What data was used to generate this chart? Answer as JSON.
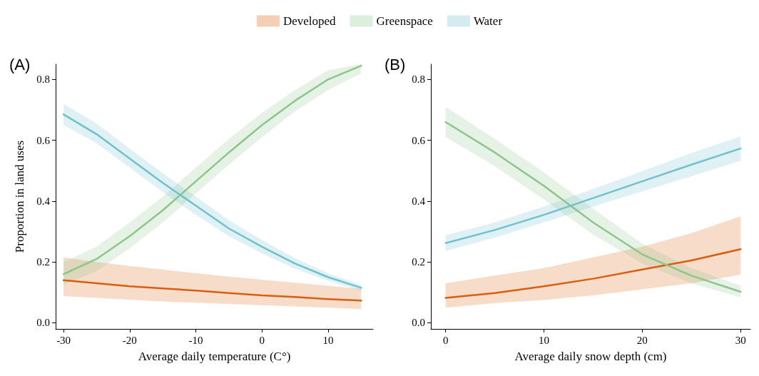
{
  "chart_data": [
    {
      "type": "line",
      "title": "(A)",
      "xlabel": "Average daily temperature (C°)",
      "ylabel": "Proportion in land uses",
      "x": [
        -30,
        -25,
        -20,
        -15,
        -10,
        -5,
        0,
        5,
        10,
        15
      ],
      "xlim": [
        -31.2,
        16.8
      ],
      "xticks": [
        -30,
        -20,
        -10,
        0,
        10
      ],
      "ylim": [
        -0.02,
        0.85
      ],
      "yticks": [
        {
          "value": 0,
          "label": "0.0"
        },
        0.2,
        0.4,
        0.6,
        0.8
      ],
      "grid": false,
      "legend": "top",
      "marker": "none",
      "line_style": "solid",
      "series": [
        {
          "name": "Developed",
          "color": "#d95f0e",
          "values": [
            0.14,
            0.13,
            0.12,
            0.113,
            0.106,
            0.098,
            0.09,
            0.085,
            0.078,
            0.073
          ],
          "lower": [
            0.088,
            0.082,
            0.076,
            0.07,
            0.066,
            0.062,
            0.058,
            0.054,
            0.05,
            0.045
          ],
          "upper": [
            0.215,
            0.2,
            0.187,
            0.175,
            0.163,
            0.152,
            0.142,
            0.132,
            0.122,
            0.112
          ]
        },
        {
          "name": "Greenspace",
          "color": "#8cc68a",
          "values": [
            0.16,
            0.21,
            0.285,
            0.37,
            0.465,
            0.56,
            0.65,
            0.73,
            0.8,
            0.845
          ],
          "lower": [
            0.125,
            0.17,
            0.245,
            0.33,
            0.425,
            0.52,
            0.61,
            0.695,
            0.765,
            0.82
          ],
          "upper": [
            0.2,
            0.25,
            0.33,
            0.415,
            0.51,
            0.605,
            0.69,
            0.765,
            0.83,
            0.85
          ]
        },
        {
          "name": "Water",
          "color": "#6fc1cb",
          "values": [
            0.685,
            0.62,
            0.54,
            0.46,
            0.385,
            0.31,
            0.25,
            0.195,
            0.15,
            0.115
          ],
          "lower": [
            0.65,
            0.59,
            0.51,
            0.43,
            0.355,
            0.285,
            0.228,
            0.178,
            0.138,
            0.105
          ],
          "upper": [
            0.72,
            0.655,
            0.572,
            0.492,
            0.415,
            0.337,
            0.272,
            0.212,
            0.163,
            0.125
          ]
        }
      ]
    },
    {
      "type": "line",
      "title": "(B)",
      "xlabel": "Average daily snow depth (cm)",
      "x": [
        0,
        5,
        10,
        15,
        20,
        25,
        30
      ],
      "xlim": [
        -1.5,
        31
      ],
      "xticks": [
        0,
        10,
        20,
        30
      ],
      "ylim": [
        -0.02,
        0.85
      ],
      "yticks": [
        {
          "value": 0,
          "label": "0.0"
        },
        0.2,
        0.4,
        0.6,
        0.8
      ],
      "grid": false,
      "marker": "none",
      "line_style": "solid",
      "series": [
        {
          "color": "#d95f0e",
          "values": [
            0.082,
            0.098,
            0.12,
            0.145,
            0.175,
            0.205,
            0.242
          ],
          "lower": [
            0.05,
            0.065,
            0.075,
            0.09,
            0.11,
            0.13,
            0.158
          ],
          "upper": [
            0.13,
            0.155,
            0.18,
            0.215,
            0.25,
            0.295,
            0.35
          ]
        },
        {
          "color": "#8cc68a",
          "values": [
            0.66,
            0.56,
            0.45,
            0.33,
            0.225,
            0.155,
            0.102
          ],
          "lower": [
            0.61,
            0.515,
            0.405,
            0.29,
            0.195,
            0.13,
            0.083
          ],
          "upper": [
            0.71,
            0.605,
            0.495,
            0.375,
            0.26,
            0.18,
            0.122
          ]
        },
        {
          "color": "#6fc1cb",
          "values": [
            0.262,
            0.305,
            0.355,
            0.41,
            0.465,
            0.52,
            0.573
          ],
          "lower": [
            0.236,
            0.28,
            0.33,
            0.382,
            0.432,
            0.482,
            0.533
          ],
          "upper": [
            0.288,
            0.33,
            0.382,
            0.44,
            0.498,
            0.558,
            0.613
          ]
        }
      ]
    }
  ]
}
